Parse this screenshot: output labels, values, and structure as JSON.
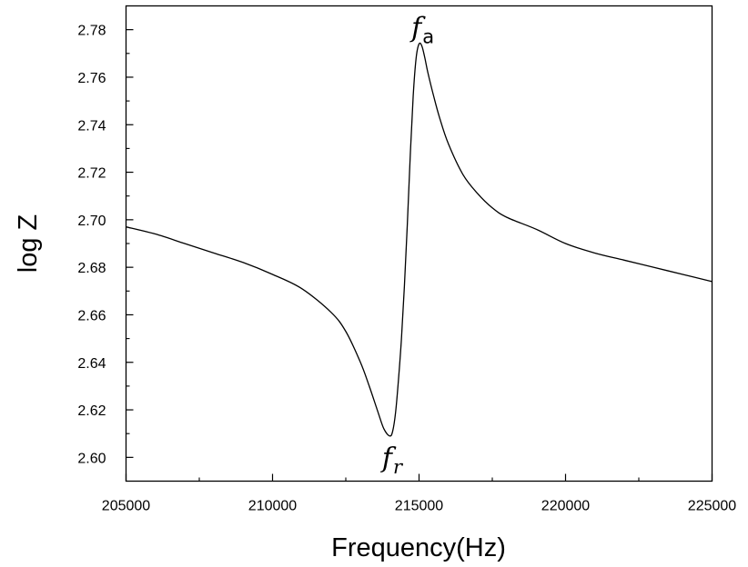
{
  "chart_data": {
    "type": "line",
    "title": "",
    "xlabel": "Frequency(Hz)",
    "ylabel": "log Z",
    "xlim": [
      205000,
      225000
    ],
    "ylim": [
      2.59,
      2.79
    ],
    "grid": false,
    "legend": "none",
    "line_color": "#000000",
    "x_ticks": [
      "205000",
      "210000",
      "215000",
      "220000",
      "225000"
    ],
    "x_tick_values": [
      205000,
      210000,
      215000,
      220000,
      225000
    ],
    "y_ticks": [
      "2.60",
      "2.62",
      "2.64",
      "2.66",
      "2.68",
      "2.70",
      "2.72",
      "2.74",
      "2.76",
      "2.78"
    ],
    "y_tick_values": [
      2.6,
      2.62,
      2.64,
      2.66,
      2.68,
      2.7,
      2.72,
      2.74,
      2.76,
      2.78
    ],
    "annotations": [
      {
        "text": "f",
        "sub": "a",
        "x": 215050,
        "y": 2.774,
        "position": "above"
      },
      {
        "text": "f",
        "sub": "r",
        "x": 214050,
        "y": 2.609,
        "position": "below"
      }
    ],
    "series": [
      {
        "x": [
          205000,
          206000,
          207000,
          208000,
          209000,
          210000,
          211000,
          212000,
          212500,
          213000,
          213300,
          213600,
          213800,
          214000,
          214100,
          214200,
          214300,
          214400,
          214500,
          214600,
          214700,
          214800,
          214900,
          215000,
          215100,
          215200,
          215300,
          215500,
          215700,
          216000,
          216500,
          217000,
          217500,
          218000,
          219000,
          220000,
          221000,
          222000,
          223000,
          224000,
          225000
        ],
        "y": [
          2.697,
          2.694,
          2.69,
          2.686,
          2.682,
          2.677,
          2.671,
          2.661,
          2.653,
          2.64,
          2.63,
          2.619,
          2.612,
          2.609,
          2.611,
          2.619,
          2.633,
          2.65,
          2.672,
          2.698,
          2.727,
          2.752,
          2.768,
          2.774,
          2.773,
          2.768,
          2.762,
          2.752,
          2.743,
          2.732,
          2.719,
          2.711,
          2.705,
          2.701,
          2.696,
          2.69,
          2.686,
          2.683,
          2.68,
          2.677,
          2.674
        ]
      }
    ]
  }
}
